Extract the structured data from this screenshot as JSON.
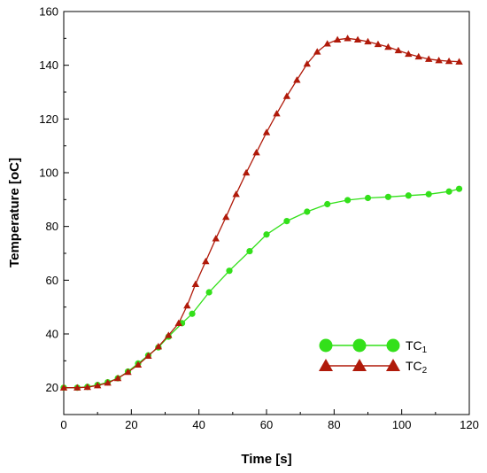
{
  "chart_data": {
    "type": "line",
    "xlabel": "Time [s]",
    "ylabel": "Temperature [oC]",
    "xlim": [
      0,
      120
    ],
    "ylim": [
      10,
      160
    ],
    "x_ticks": [
      "0",
      "20",
      "40",
      "60",
      "80",
      "100",
      "120"
    ],
    "y_ticks": [
      "20",
      "40",
      "60",
      "80",
      "100",
      "120",
      "140",
      "160"
    ],
    "grid": false,
    "legend_position": "bottom-right",
    "series": [
      {
        "name": "TC",
        "name_subscript": "1",
        "color": "#33e01a",
        "marker": "circle",
        "x": [
          0,
          4,
          7,
          10,
          13,
          16,
          19,
          22,
          25,
          28,
          31,
          35,
          38,
          43,
          49,
          55,
          60,
          66,
          72,
          78,
          84,
          90,
          96,
          102,
          108,
          114,
          117
        ],
        "y": [
          20,
          20,
          20.3,
          21,
          22,
          23.5,
          26,
          29,
          32,
          35,
          39,
          44,
          47.5,
          55.5,
          63.5,
          70.8,
          77,
          82,
          85.5,
          88.3,
          89.8,
          90.6,
          91,
          91.5,
          92,
          93,
          94
        ]
      },
      {
        "name": "TC",
        "name_subscript": "2",
        "color": "#b01a0a",
        "marker": "triangle",
        "x": [
          0,
          4,
          7,
          10,
          13,
          16,
          19,
          22,
          25,
          28,
          31,
          34,
          36.5,
          39,
          42,
          45,
          48,
          51,
          54,
          57,
          60,
          63,
          66,
          69,
          72,
          75,
          78,
          81,
          84,
          87,
          90,
          93,
          96,
          99,
          102,
          105,
          108,
          111,
          114,
          117
        ],
        "y": [
          20,
          20,
          20.2,
          20.8,
          21.8,
          23.5,
          25.8,
          28.5,
          31.8,
          35.3,
          39.5,
          44,
          50.5,
          58.5,
          67,
          75.5,
          83.5,
          92,
          100,
          107.5,
          115,
          122,
          128.5,
          134.5,
          140.5,
          145,
          148,
          149.5,
          150,
          149.5,
          148.8,
          147.8,
          146.8,
          145.5,
          144.2,
          143.2,
          142.3,
          141.8,
          141.5,
          141.3
        ]
      }
    ]
  }
}
